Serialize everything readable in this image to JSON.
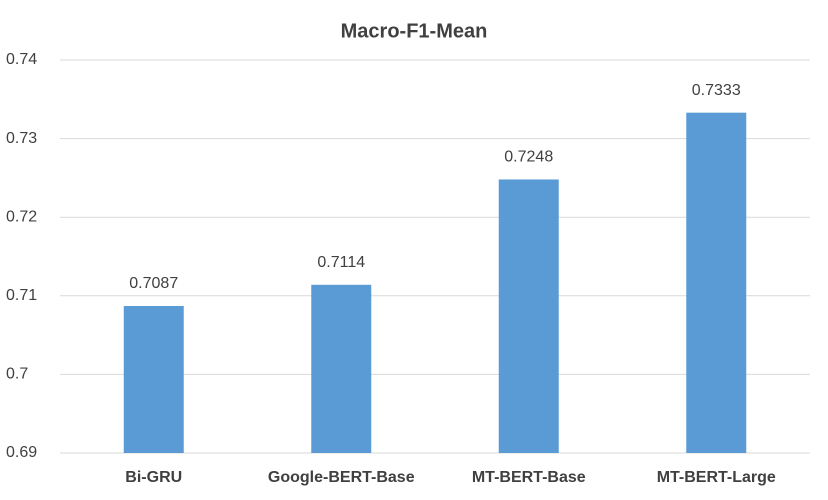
{
  "chart_data": {
    "type": "bar",
    "title": "Macro-F1-Mean",
    "categories": [
      "Bi-GRU",
      "Google-BERT-Base",
      "MT-BERT-Base",
      "MT-BERT-Large"
    ],
    "values": [
      0.7087,
      0.7114,
      0.7248,
      0.7333
    ],
    "color": "#5b9bd5",
    "ylim": [
      0.69,
      0.74
    ],
    "yticks": [
      0.69,
      0.7,
      0.71,
      0.72,
      0.73,
      0.74
    ],
    "grid": true
  }
}
